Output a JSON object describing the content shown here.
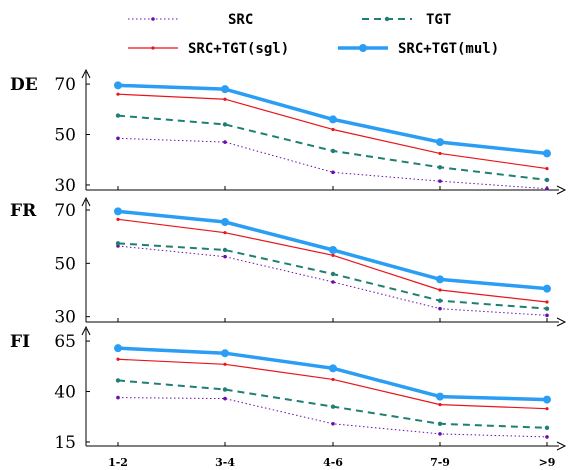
{
  "chart_data": {
    "type": "line",
    "categories": [
      "1-2",
      "3-4",
      "4-6",
      "7-9",
      ">9"
    ],
    "legend_position": "top",
    "legend": [
      {
        "name": "SRC",
        "color": "#6a0dad",
        "style": "dotted"
      },
      {
        "name": "TGT",
        "color": "#1f7f73",
        "style": "dashed"
      },
      {
        "name": "SRC+TGT(sgl)",
        "color": "#e8151b",
        "style": "solid-thin"
      },
      {
        "name": "SRC+TGT(mul)",
        "color": "#2a9df4",
        "style": "solid-thick"
      }
    ],
    "panels": [
      {
        "label": "DE",
        "yticks": [
          30,
          50,
          70
        ],
        "ylim": [
          28,
          74
        ],
        "series": [
          {
            "name": "SRC",
            "values": [
              48.5,
              47,
              35,
              31.5,
              28.5
            ]
          },
          {
            "name": "TGT",
            "values": [
              57.5,
              54,
              43.5,
              37,
              32
            ]
          },
          {
            "name": "SRC+TGT(sgl)",
            "values": [
              66,
              64,
              52,
              42.5,
              36.5
            ]
          },
          {
            "name": "SRC+TGT(mul)",
            "values": [
              69.5,
              68,
              56,
              47,
              42.5
            ]
          }
        ]
      },
      {
        "label": "FR",
        "yticks": [
          30,
          50,
          70
        ],
        "ylim": [
          28,
          73
        ],
        "series": [
          {
            "name": "SRC",
            "values": [
              56.5,
              52.5,
              43,
              33,
              30.5
            ]
          },
          {
            "name": "TGT",
            "values": [
              57.5,
              55,
              46,
              36,
              33
            ]
          },
          {
            "name": "SRC+TGT(sgl)",
            "values": [
              66.5,
              61.5,
              53,
              40,
              35.5
            ]
          },
          {
            "name": "SRC+TGT(mul)",
            "values": [
              69.5,
              65.5,
              55,
              44,
              40.5
            ]
          }
        ]
      },
      {
        "label": "FI",
        "yticks": [
          15,
          40,
          65
        ],
        "ylim": [
          13,
          70
        ],
        "series": [
          {
            "name": "SRC",
            "values": [
              37,
              36.5,
              24,
              19,
              17.5
            ]
          },
          {
            "name": "TGT",
            "values": [
              45.5,
              41,
              32.5,
              24,
              22
            ]
          },
          {
            "name": "SRC+TGT(sgl)",
            "values": [
              56,
              53.5,
              46,
              33.5,
              31.5
            ]
          },
          {
            "name": "SRC+TGT(mul)",
            "values": [
              61.5,
              59,
              51.5,
              37.5,
              36
            ]
          }
        ]
      }
    ]
  }
}
